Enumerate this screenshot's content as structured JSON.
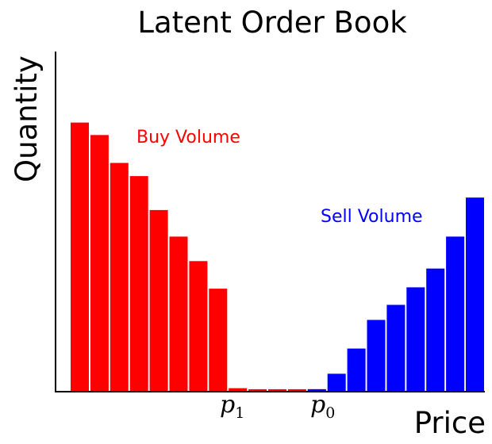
{
  "chart_data": {
    "type": "bar",
    "title": "Latent Order Book",
    "xlabel": "Price",
    "ylabel": "Quantity",
    "ylim": [
      0,
      100
    ],
    "grid": false,
    "series": [
      {
        "name": "Buy Volume",
        "color": "#ff0000",
        "values": [
          79.8,
          76.1,
          67.8,
          63.9,
          53.8,
          45.9,
          38.6,
          30.4,
          0.8,
          0.5,
          0.5,
          0.5,
          0.5,
          0,
          0,
          0,
          0,
          0,
          0,
          0,
          0
        ]
      },
      {
        "name": "Sell Volume",
        "color": "#0000ff",
        "values": [
          0,
          0,
          0,
          0,
          0,
          0,
          0,
          0,
          0,
          0,
          0,
          0,
          0.5,
          5.1,
          12.6,
          21.1,
          25.6,
          30.8,
          36.4,
          45.9,
          57.5
        ]
      }
    ],
    "x_ticks": [
      {
        "base": "p",
        "sub": "1"
      },
      {
        "base": "p",
        "sub": "0"
      }
    ]
  }
}
